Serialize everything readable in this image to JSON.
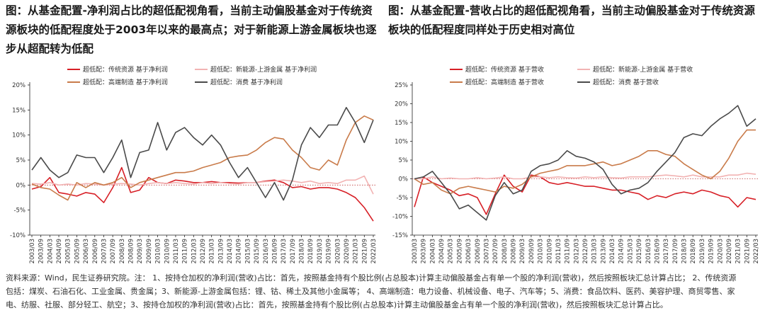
{
  "left": {
    "title": "图：从基金配置-净利润占比的超低配视角看，当前主动偏股基金对于传统资源板块的低配程度处于2003年以来的最高点；对于新能源上游金属板块也逐步从超配转为低配"
  },
  "right": {
    "title": "图：从基金配置-营收占比的超低配视角看，当前主动偏股基金对于传统资源板块的低配程度同样处于历史相对高位"
  },
  "footer": {
    "line1": "资料来源：Wind，民生证券研究院。注： 1、按持仓加权的净利润(营收)占比：首先，按照基金持有个股比例(占总股本)计算主动偏股基金占有单一个股的净利润(营收)，然后按照板块汇总计算占比；  2、传统资源",
    "line2": "包括：煤炭、石油石化、工业金属、贵金属；3、新能源-上游金属包括：锂、钴、稀土及其他小金属等；  4、高端制造：电力设备、机械设备、电子、汽车等；5、消费：食品饮料、医药、美容护理、商贸零售、家",
    "line3": "电、纺服、社服、部分轻工、航空；3、按持仓加权的净利润(营收)占比：首先，按照基金持有个股比例(占总股本)计算主动偏股基金占有单一个股的净利润(营收)，然后按照板块汇总计算占比。"
  },
  "colors": {
    "traditional": "#d71f26",
    "newenergy": "#f2b3b3",
    "highend": "#c97b4a",
    "consumer": "#4a4a4a"
  },
  "chart_data": [
    {
      "type": "line",
      "x": [
        "2003/03",
        "2003/09",
        "2004/03",
        "2004/09",
        "2005/03",
        "2005/09",
        "2006/03",
        "2006/09",
        "2007/03",
        "2007/09",
        "2008/03",
        "2008/09",
        "2009/03",
        "2009/09",
        "2010/03",
        "2010/09",
        "2011/03",
        "2011/09",
        "2012/03",
        "2012/09",
        "2013/03",
        "2013/09",
        "2014/03",
        "2014/09",
        "2015/03",
        "2015/09",
        "2016/03",
        "2016/09",
        "2017/03",
        "2017/09",
        "2018/03",
        "2018/09",
        "2019/03",
        "2019/09",
        "2020/03",
        "2020/09",
        "2021/03",
        "2021/09",
        "2022/03"
      ],
      "ylim": [
        -10,
        20
      ],
      "yticks": [
        "-10%",
        "-5%",
        "0%",
        "5%",
        "10%",
        "15%",
        "20%"
      ],
      "ytick_values": [
        -10,
        -5,
        0,
        5,
        10,
        15,
        20
      ],
      "series": [
        {
          "name": "超低配：传统资源 基于净利润",
          "color_key": "traditional",
          "values": [
            -0.8,
            -0.3,
            1.5,
            -1.5,
            -1.8,
            -2.2,
            -1.5,
            -1.8,
            -3.5,
            -0.5,
            3.5,
            -1.5,
            -1.0,
            1.5,
            0.5,
            0.3,
            1.0,
            0.8,
            0.5,
            0.5,
            0.7,
            0.5,
            0.5,
            0.4,
            0.5,
            0.5,
            0.8,
            1.0,
            0.5,
            -0.5,
            -0.3,
            -0.8,
            -0.5,
            -0.5,
            -0.8,
            -1.5,
            -2.5,
            -4.5,
            -7.2
          ]
        },
        {
          "name": "超低配：新能源-上游金属 基于净利润",
          "color_key": "newenergy",
          "values": [
            0.3,
            0.2,
            0.5,
            0.0,
            0.2,
            0.0,
            0.3,
            0.2,
            0.0,
            0.2,
            0.3,
            0.2,
            0.0,
            0.3,
            0.5,
            0.3,
            0.5,
            0.3,
            0.2,
            0.5,
            0.3,
            0.5,
            0.3,
            0.2,
            0.5,
            0.5,
            0.7,
            0.8,
            1.0,
            0.8,
            0.5,
            0.8,
            0.3,
            0.5,
            0.3,
            1.0,
            1.0,
            1.8,
            -1.8
          ]
        },
        {
          "name": "超低配：高端制造 基于净利润",
          "color_key": "highend",
          "values": [
            0.2,
            -0.5,
            -0.8,
            -2.0,
            -3.0,
            0.5,
            -0.5,
            0.5,
            0.0,
            0.5,
            1.5,
            -0.5,
            0.5,
            1.0,
            1.5,
            2.0,
            2.5,
            2.5,
            2.8,
            3.5,
            4.0,
            4.5,
            5.5,
            5.8,
            6.0,
            7.0,
            8.5,
            9.5,
            9.2,
            7.0,
            5.5,
            3.5,
            3.0,
            5.0,
            4.0,
            9.0,
            12.5,
            13.8,
            13.0
          ]
        },
        {
          "name": "超低配：消费 基于净利润",
          "color_key": "consumer",
          "values": [
            3.0,
            5.5,
            3.0,
            1.5,
            2.5,
            6.0,
            5.5,
            5.5,
            2.5,
            5.5,
            9.0,
            1.5,
            6.5,
            7.0,
            12.5,
            7.0,
            10.5,
            11.5,
            9.5,
            8.0,
            10.0,
            8.0,
            4.5,
            1.5,
            3.5,
            0.5,
            -2.5,
            0.5,
            -3.0,
            1.0,
            8.0,
            11.5,
            9.5,
            12.0,
            12.0,
            15.5,
            12.5,
            8.5,
            13.0
          ]
        }
      ]
    },
    {
      "type": "line",
      "x": [
        "2003/03",
        "2003/09",
        "2004/03",
        "2004/09",
        "2005/03",
        "2005/09",
        "2006/03",
        "2006/09",
        "2007/03",
        "2007/09",
        "2008/03",
        "2008/09",
        "2009/03",
        "2009/09",
        "2010/03",
        "2010/09",
        "2011/03",
        "2011/09",
        "2012/03",
        "2012/09",
        "2013/03",
        "2013/09",
        "2014/03",
        "2014/09",
        "2015/03",
        "2015/09",
        "2016/03",
        "2016/09",
        "2017/03",
        "2017/09",
        "2018/03",
        "2018/09",
        "2019/03",
        "2019/09",
        "2020/03",
        "2020/09",
        "2021/03",
        "2021/09",
        "2022/03"
      ],
      "ylim": [
        -15,
        25
      ],
      "yticks": [
        "-15%",
        "-10%",
        "-5%",
        "0%",
        "5%",
        "10%",
        "15%",
        "20%",
        "25%"
      ],
      "ytick_values": [
        -15,
        -10,
        -5,
        0,
        5,
        10,
        15,
        20,
        25
      ],
      "series": [
        {
          "name": "超低配：传统资源 基于营收",
          "color_key": "traditional",
          "values": [
            -7.5,
            0.5,
            -1.0,
            -2.0,
            -3.0,
            -4.5,
            -4.0,
            -5.0,
            -9.5,
            -4.0,
            1.0,
            -2.0,
            -3.5,
            1.0,
            0.5,
            -1.0,
            -1.5,
            -1.0,
            -1.5,
            -2.0,
            -2.0,
            -2.5,
            -3.0,
            -3.0,
            -3.5,
            -4.0,
            -5.5,
            -4.5,
            -5.0,
            -4.0,
            -3.5,
            -4.0,
            -3.0,
            -3.5,
            -4.5,
            -5.0,
            -7.5,
            -5.0,
            -5.5
          ]
        },
        {
          "name": "超低配：新能源-上游金属 基于营收",
          "color_key": "newenergy",
          "values": [
            0.0,
            0.0,
            0.5,
            0.0,
            0.2,
            0.0,
            0.0,
            0.3,
            0.0,
            0.2,
            0.5,
            0.0,
            0.0,
            0.5,
            0.5,
            0.3,
            0.5,
            0.3,
            0.2,
            0.5,
            0.3,
            0.5,
            0.3,
            0.2,
            0.5,
            0.5,
            0.5,
            0.8,
            1.0,
            0.8,
            0.5,
            1.0,
            0.5,
            0.5,
            0.5,
            1.0,
            1.0,
            1.5,
            1.2
          ]
        },
        {
          "name": "超低配：高端制造 基于营收",
          "color_key": "highend",
          "values": [
            0.0,
            -1.5,
            -1.0,
            -3.0,
            -4.0,
            -2.5,
            -2.0,
            -2.5,
            -3.0,
            -3.5,
            -2.0,
            -2.5,
            -1.5,
            0.5,
            1.5,
            2.0,
            2.5,
            3.5,
            3.5,
            3.5,
            4.0,
            4.5,
            3.5,
            4.0,
            5.0,
            6.0,
            7.5,
            7.5,
            6.5,
            6.0,
            4.0,
            2.5,
            1.0,
            0.0,
            2.0,
            5.5,
            10.0,
            13.0,
            13.0
          ]
        },
        {
          "name": "超低配：消费 基于营收",
          "color_key": "consumer",
          "values": [
            0.0,
            0.5,
            2.0,
            -1.0,
            -4.0,
            -8.0,
            -7.0,
            -9.0,
            -11.0,
            -4.5,
            -1.0,
            -4.0,
            -3.0,
            2.0,
            3.5,
            4.0,
            5.0,
            7.5,
            6.0,
            5.5,
            4.5,
            2.5,
            -1.5,
            -4.0,
            -3.0,
            -2.5,
            -1.0,
            2.0,
            4.5,
            7.0,
            11.0,
            12.0,
            11.5,
            14.0,
            16.0,
            17.5,
            19.5,
            14.0,
            16.0
          ]
        }
      ]
    }
  ]
}
